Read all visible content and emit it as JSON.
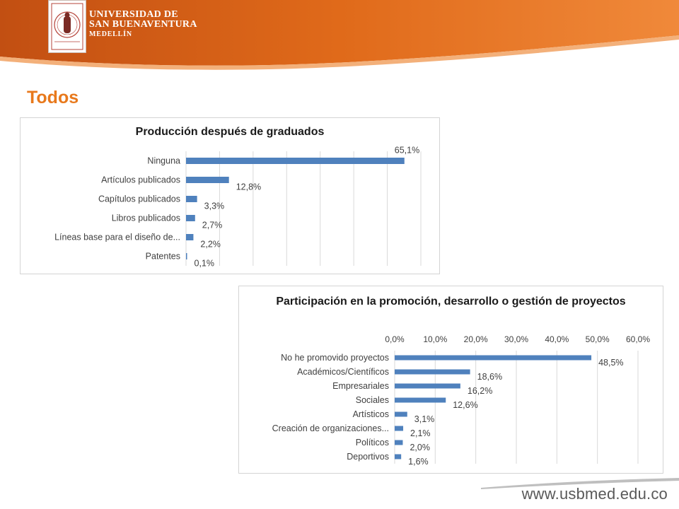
{
  "header": {
    "university_line1": "UNIVERSIDAD DE",
    "university_line2": "SAN BUENAVENTURA",
    "university_line3": "MEDELLÍN",
    "brand_color": "#e8791c",
    "logo_icon": "university-seal-icon"
  },
  "section_title": "Todos",
  "footer": {
    "url": "www.usbmed.edu.co"
  },
  "chart_data": [
    {
      "type": "bar",
      "orientation": "horizontal",
      "title": "Producción después de graduados",
      "categories": [
        "Ninguna",
        "Artículos publicados",
        "Capítulos publicados",
        "Libros publicados",
        "Líneas base para el diseño de...",
        "Patentes"
      ],
      "values": [
        65.1,
        12.8,
        3.3,
        2.7,
        2.2,
        0.1
      ],
      "data_labels": [
        "65,1%",
        "12,8%",
        "3,3%",
        "2,7%",
        "2,2%",
        "0,1%"
      ],
      "xlim": [
        0,
        70
      ],
      "grid": true,
      "bar_color": "#4f81bd"
    },
    {
      "type": "bar",
      "orientation": "horizontal",
      "title": "Participación en la promoción, desarrollo o gestión de proyectos",
      "categories": [
        "No he promovido proyectos",
        "Académicos/Científicos",
        "Empresariales",
        "Sociales",
        "Artísticos",
        "Creación de organizaciones...",
        "Políticos",
        "Deportivos"
      ],
      "values": [
        48.5,
        18.6,
        16.2,
        12.6,
        3.1,
        2.1,
        2.0,
        1.6
      ],
      "data_labels": [
        "48,5%",
        "18,6%",
        "16,2%",
        "12,6%",
        "3,1%",
        "2,1%",
        "2,0%",
        "1,6%"
      ],
      "xlim": [
        0,
        60
      ],
      "x_ticks": [
        "0,0%",
        "10,0%",
        "20,0%",
        "30,0%",
        "40,0%",
        "50,0%",
        "60,0%"
      ],
      "x_tick_values": [
        0,
        10,
        20,
        30,
        40,
        50,
        60
      ],
      "axis_position": "top",
      "grid": true,
      "bar_color": "#4f81bd"
    }
  ]
}
